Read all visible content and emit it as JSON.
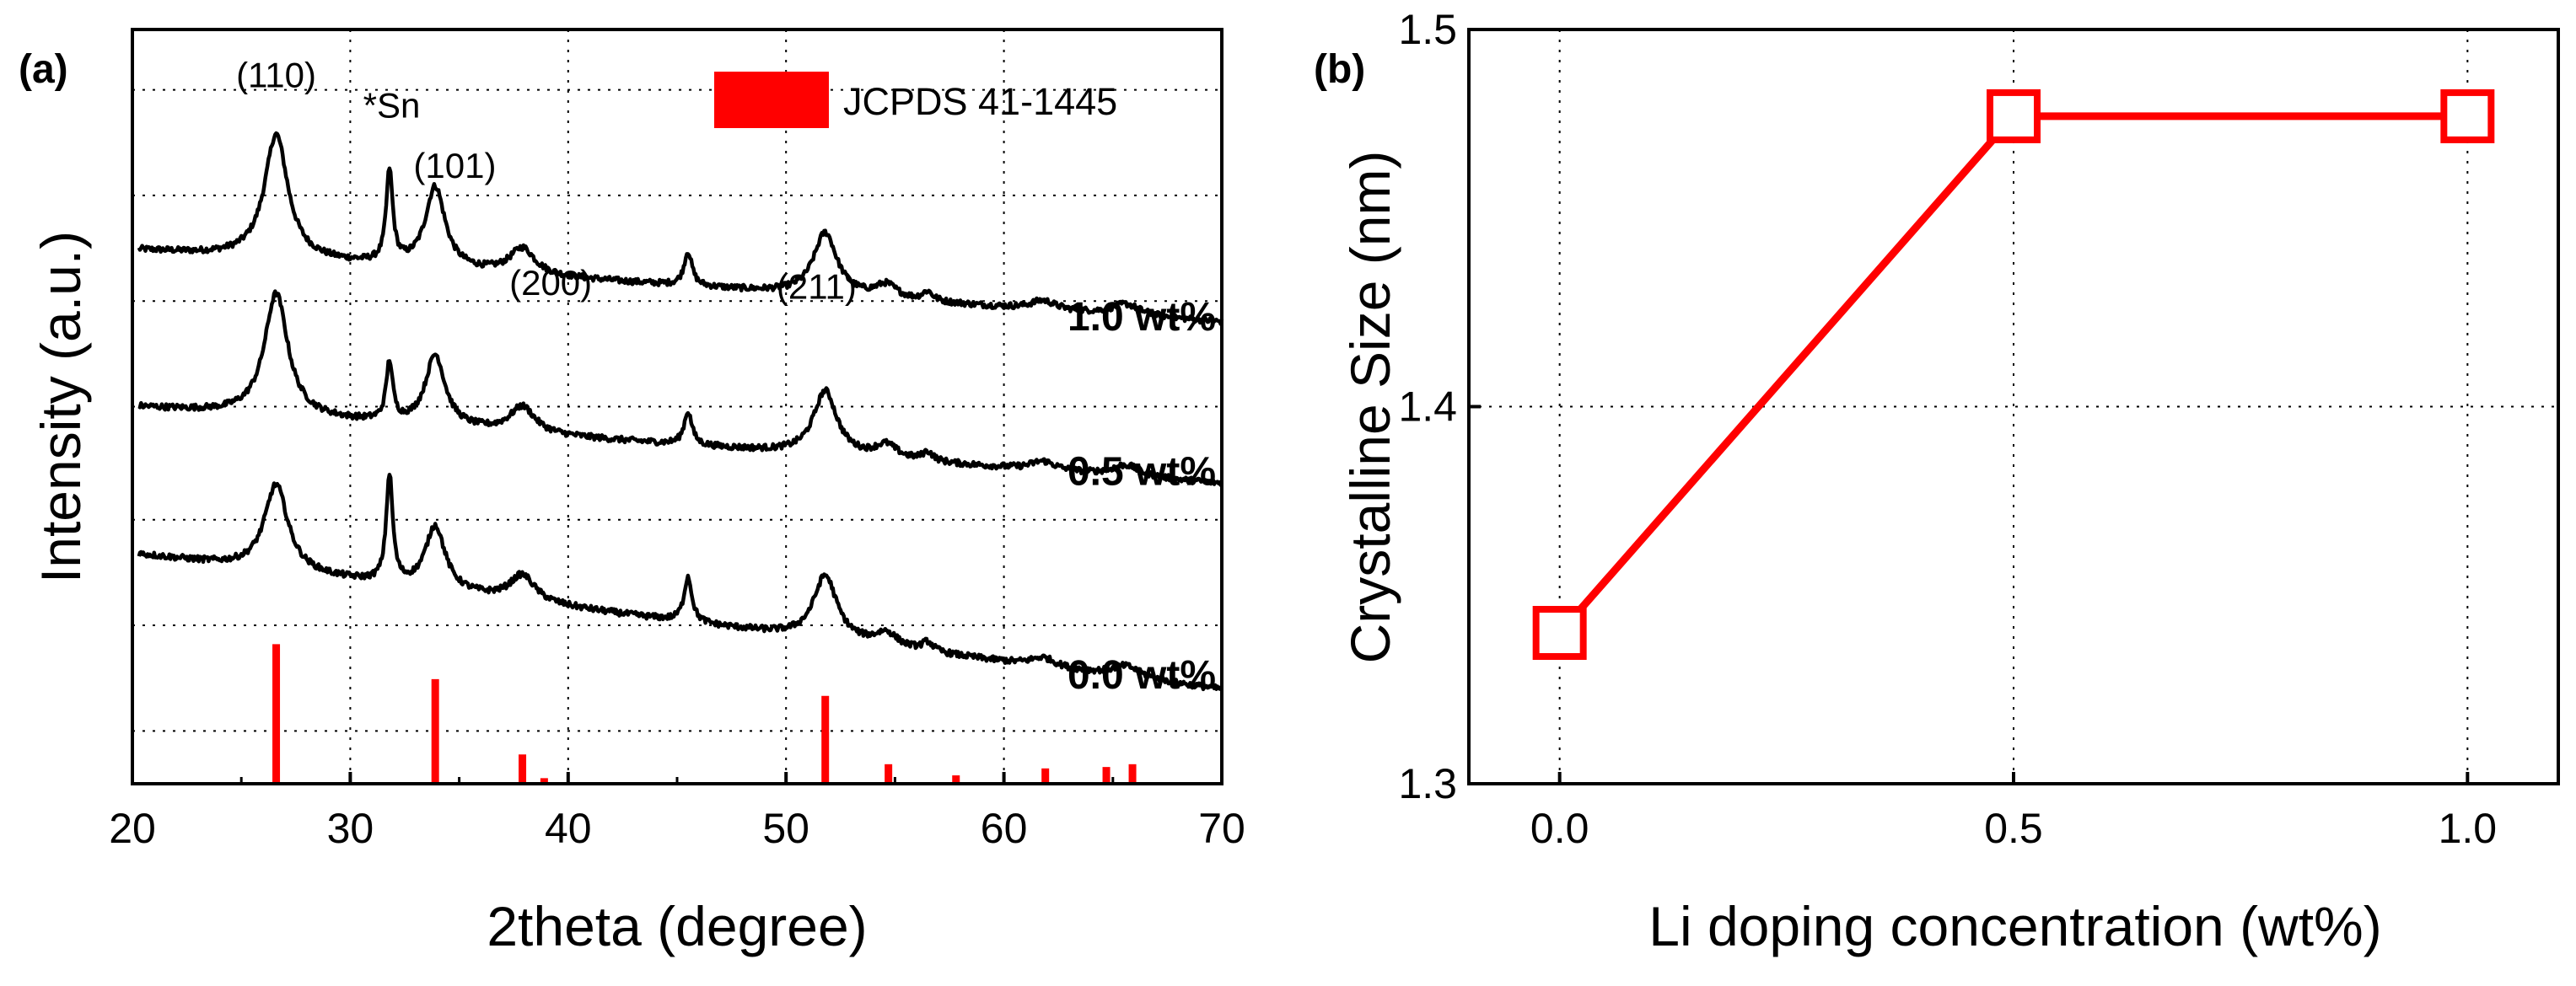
{
  "chart_data": [
    {
      "panel_label": "(a)",
      "type": "line",
      "xlabel": "2theta (degree)",
      "ylabel": "Intensity (a.u.)",
      "xlim": [
        20,
        70
      ],
      "x_ticks": [
        20,
        30,
        40,
        50,
        60,
        70
      ],
      "grid": true,
      "legend": {
        "position": "top-right",
        "label": "JCPDS 41-1445",
        "color": "#ff0000"
      },
      "baseline_color": "#000000",
      "baseline_noise": 0.004,
      "series": [
        {
          "name": "1.0 wt%",
          "color": "#000000",
          "baseline": [
            0.708,
            0.612
          ],
          "peaks": [
            {
              "center": 26.6,
              "height": 0.165,
              "width": 0.65
            },
            {
              "center": 31.8,
              "height": 0.122,
              "width": 0.18
            },
            {
              "center": 33.9,
              "height": 0.108,
              "width": 0.55
            },
            {
              "center": 37.9,
              "height": 0.035,
              "width": 0.7
            },
            {
              "center": 45.5,
              "height": 0.045,
              "width": 0.22
            },
            {
              "center": 51.8,
              "height": 0.083,
              "width": 0.65
            },
            {
              "center": 54.6,
              "height": 0.018,
              "width": 0.6
            },
            {
              "center": 56.5,
              "height": 0.012,
              "width": 0.3
            },
            {
              "center": 61.8,
              "height": 0.012,
              "width": 0.7
            },
            {
              "center": 65.6,
              "height": 0.015,
              "width": 0.8
            }
          ]
        },
        {
          "name": "0.5 wt%",
          "color": "#000000",
          "baseline": [
            0.5,
            0.398
          ],
          "peaks": [
            {
              "center": 26.6,
              "height": 0.163,
              "width": 0.65
            },
            {
              "center": 31.8,
              "height": 0.078,
              "width": 0.18
            },
            {
              "center": 33.9,
              "height": 0.095,
              "width": 0.55
            },
            {
              "center": 37.9,
              "height": 0.035,
              "width": 0.7
            },
            {
              "center": 45.5,
              "height": 0.044,
              "width": 0.22
            },
            {
              "center": 51.8,
              "height": 0.085,
              "width": 0.65
            },
            {
              "center": 54.6,
              "height": 0.018,
              "width": 0.6
            },
            {
              "center": 56.5,
              "height": 0.012,
              "width": 0.3
            },
            {
              "center": 61.8,
              "height": 0.012,
              "width": 0.7
            },
            {
              "center": 65.6,
              "height": 0.015,
              "width": 0.8
            }
          ]
        },
        {
          "name": "0.0 wt%",
          "color": "#000000",
          "baseline": [
            0.305,
            0.125
          ],
          "peaks": [
            {
              "center": 26.6,
              "height": 0.115,
              "width": 0.65
            },
            {
              "center": 31.8,
              "height": 0.142,
              "width": 0.18
            },
            {
              "center": 33.9,
              "height": 0.085,
              "width": 0.55
            },
            {
              "center": 37.9,
              "height": 0.035,
              "width": 0.7
            },
            {
              "center": 45.5,
              "height": 0.06,
              "width": 0.22
            },
            {
              "center": 51.8,
              "height": 0.085,
              "width": 0.65
            },
            {
              "center": 54.6,
              "height": 0.018,
              "width": 0.6
            },
            {
              "center": 56.5,
              "height": 0.012,
              "width": 0.3
            },
            {
              "center": 61.8,
              "height": 0.012,
              "width": 0.7
            },
            {
              "center": 65.6,
              "height": 0.015,
              "width": 0.8
            }
          ]
        }
      ],
      "reference_peaks": {
        "name": "JCPDS 41-1445",
        "color": "#ff0000",
        "x": [
          26.6,
          33.9,
          37.9,
          38.9,
          42.6,
          51.8,
          54.7,
          57.8,
          61.9,
          64.7,
          65.9
        ],
        "intensity": [
          100,
          75,
          21,
          4,
          1,
          63,
          14,
          6,
          11,
          12,
          14
        ]
      },
      "annotations": [
        {
          "text": "(110)",
          "x": 26.6,
          "y": 0.94
        },
        {
          "text": "*Sn",
          "x": 31.9,
          "y": 0.9
        },
        {
          "text": "(101)",
          "x": 34.8,
          "y": 0.82
        },
        {
          "text": "(200)",
          "x": 39.2,
          "y": 0.665
        },
        {
          "text": "(211)",
          "x": 51.4,
          "y": 0.66
        }
      ]
    },
    {
      "panel_label": "(b)",
      "type": "line",
      "xlabel": "Li doping concentration (wt%)",
      "ylabel": "Crystalline Size (nm)",
      "xlim": [
        -0.1,
        1.1
      ],
      "ylim": [
        1.3,
        1.5
      ],
      "x_ticks": [
        0.0,
        0.5,
        1.0
      ],
      "x_tick_labels": [
        "0.0",
        "0.5",
        "1.0"
      ],
      "y_ticks": [
        1.3,
        1.4,
        1.5
      ],
      "y_tick_labels": [
        "1.3",
        "1.4",
        "1.5"
      ],
      "grid": true,
      "series": [
        {
          "name": "Crystalline Size",
          "color": "#ff0000",
          "marker": "open-square",
          "x": [
            0.0,
            0.5,
            1.0
          ],
          "values": [
            1.34,
            1.477,
            1.477
          ]
        }
      ]
    }
  ]
}
